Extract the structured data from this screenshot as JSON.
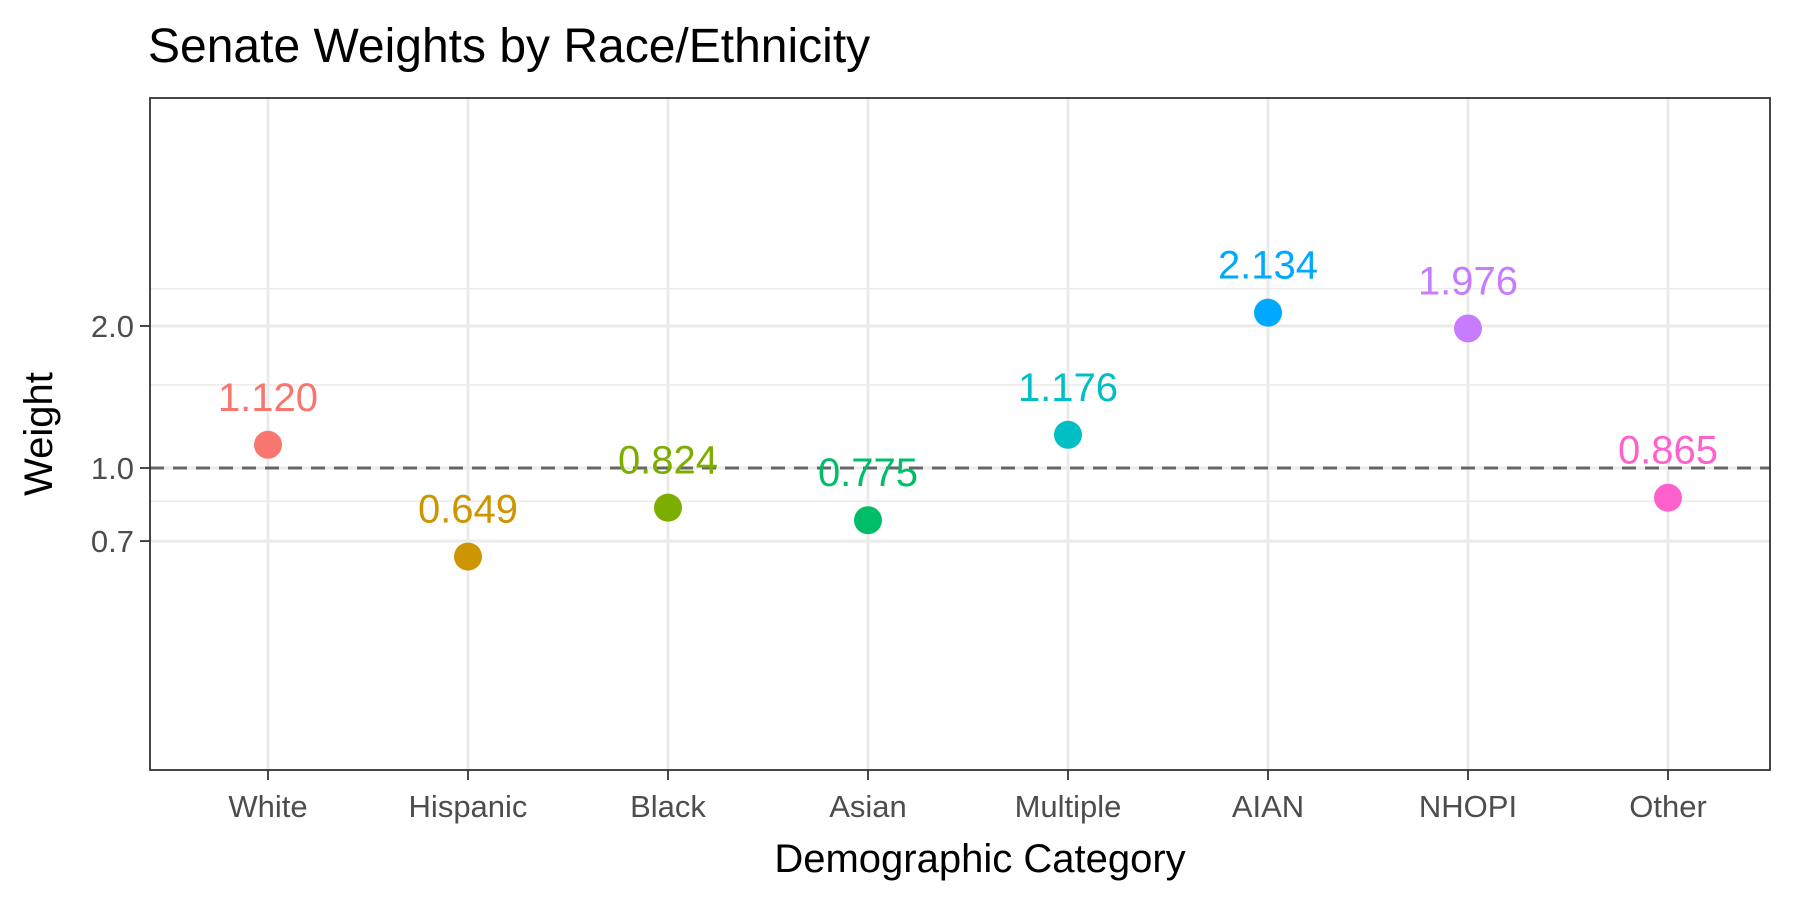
{
  "chart_data": {
    "type": "scatter",
    "title": "Senate Weights by Race/Ethnicity",
    "xlabel": "Demographic Category",
    "ylabel": "Weight",
    "y_scale": "log",
    "ylim": [
      0.6,
      2.5
    ],
    "y_ticks": [
      {
        "value": 0.7,
        "label": "0.7"
      },
      {
        "value": 1.0,
        "label": "1.0"
      },
      {
        "value": 2.0,
        "label": "2.0"
      }
    ],
    "y_minor_gridlines": [
      0.85,
      1.5,
      2.4
    ],
    "reference_line": {
      "value": 1.0,
      "style": "dashed"
    },
    "grid": true,
    "legend": "none",
    "categories": [
      "White",
      "Hispanic",
      "Black",
      "Asian",
      "Multiple",
      "AIAN",
      "NHOPI",
      "Other"
    ],
    "points": [
      {
        "category": "White",
        "value": 1.12,
        "label": "1.120",
        "color": "#F8766D"
      },
      {
        "category": "Hispanic",
        "value": 0.649,
        "label": "0.649",
        "color": "#CD9600"
      },
      {
        "category": "Black",
        "value": 0.824,
        "label": "0.824",
        "color": "#7CAE00"
      },
      {
        "category": "Asian",
        "value": 0.775,
        "label": "0.775",
        "color": "#00BE67"
      },
      {
        "category": "Multiple",
        "value": 1.176,
        "label": "1.176",
        "color": "#00BFC4"
      },
      {
        "category": "AIAN",
        "value": 2.134,
        "label": "2.134",
        "color": "#00A9FF"
      },
      {
        "category": "NHOPI",
        "value": 1.976,
        "label": "1.976",
        "color": "#C77CFF"
      },
      {
        "category": "Other",
        "value": 0.865,
        "label": "0.865",
        "color": "#FF61CC"
      }
    ]
  }
}
